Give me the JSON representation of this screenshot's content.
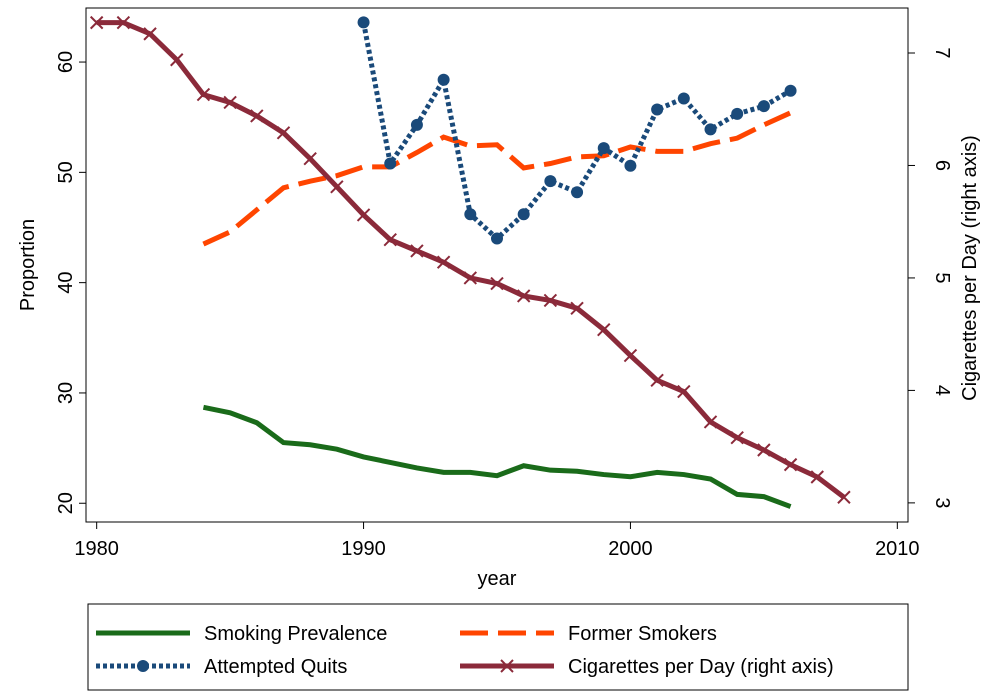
{
  "chart_data": {
    "type": "line",
    "x_label": "year",
    "y_label": "Proportion",
    "y2_label": "Cigarettes per Day (right axis)",
    "x": [
      1980,
      1981,
      1982,
      1983,
      1984,
      1985,
      1986,
      1987,
      1988,
      1989,
      1990,
      1991,
      1992,
      1993,
      1994,
      1995,
      1996,
      1997,
      1998,
      1999,
      2000,
      2001,
      2002,
      2003,
      2004,
      2005,
      2006,
      2007,
      2008
    ],
    "xlim": [
      1979.6,
      2010.4
    ],
    "xticks": [
      1980,
      1990,
      2000,
      2010
    ],
    "ylim": [
      18.3,
      64.9
    ],
    "yticks": [
      20,
      30,
      40,
      50,
      60
    ],
    "y2lim": [
      2.83,
      7.4
    ],
    "y2ticks": [
      3,
      4,
      5,
      6,
      7
    ],
    "legend": "bottom",
    "series": [
      {
        "name": "Smoking Prevalence",
        "color": "#1a6b1a",
        "style": "solid",
        "values": [
          null,
          null,
          null,
          null,
          28.7,
          28.2,
          27.3,
          25.5,
          25.3,
          24.9,
          24.2,
          23.7,
          23.2,
          22.8,
          22.8,
          22.5,
          23.4,
          23.0,
          22.9,
          22.6,
          22.4,
          22.8,
          22.6,
          22.2,
          20.8,
          20.6,
          19.7,
          null,
          null
        ]
      },
      {
        "name": "Former Smokers",
        "color": "#ff4500",
        "style": "dashed",
        "values": [
          null,
          null,
          null,
          null,
          43.5,
          44.6,
          46.6,
          48.6,
          49.2,
          49.7,
          50.5,
          50.5,
          51.8,
          53.2,
          52.4,
          52.5,
          50.4,
          50.8,
          51.4,
          51.5,
          52.3,
          51.9,
          51.9,
          52.6,
          53.1,
          54.3,
          55.4,
          null,
          null
        ]
      },
      {
        "name": "Attempted Quits",
        "color": "#1a4a7a",
        "style": "dotted",
        "marker": "circle",
        "values": [
          null,
          null,
          null,
          null,
          null,
          null,
          null,
          null,
          null,
          null,
          63.6,
          50.8,
          54.3,
          58.4,
          46.2,
          44.0,
          46.2,
          49.2,
          48.2,
          52.2,
          50.6,
          55.7,
          56.7,
          53.9,
          55.3,
          56.0,
          57.4,
          null,
          null
        ]
      },
      {
        "name": "Cigarettes per Day (right axis)",
        "color": "#8b2a3a",
        "style": "solid",
        "marker": "x",
        "axis": "y2",
        "values": [
          7.27,
          7.27,
          7.17,
          6.94,
          6.63,
          6.56,
          6.44,
          6.29,
          6.06,
          5.81,
          5.56,
          5.34,
          5.24,
          5.14,
          5.0,
          4.95,
          4.84,
          4.8,
          4.73,
          4.54,
          4.31,
          4.09,
          3.99,
          3.72,
          3.58,
          3.47,
          3.34,
          3.23,
          3.05
        ]
      }
    ]
  }
}
